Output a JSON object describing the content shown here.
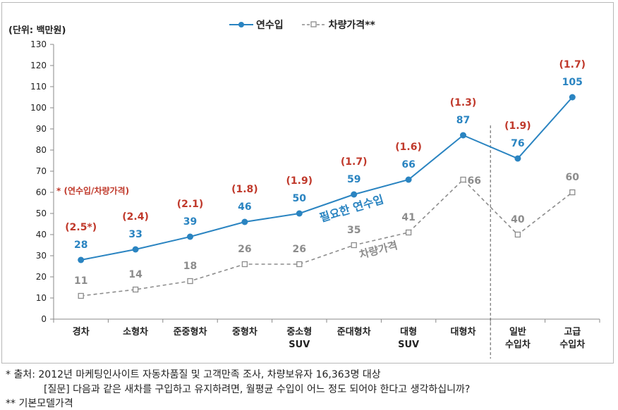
{
  "chart_data": {
    "type": "line",
    "unit_label": "(단위: 백만원)",
    "categories": [
      "경차",
      "소형차",
      "준중형차",
      "중형차",
      "중소형\nSUV",
      "준대형차",
      "대형\nSUV",
      "대형차",
      "일반\n수입차",
      "고급\n수입차"
    ],
    "ylim": [
      0,
      130
    ],
    "yticks": [
      0,
      10,
      20,
      30,
      40,
      50,
      60,
      70,
      80,
      90,
      100,
      110,
      120,
      130
    ],
    "grid": false,
    "legend_position": "top",
    "series": [
      {
        "name": "연수입",
        "values": [
          28,
          33,
          39,
          46,
          50,
          59,
          66,
          87,
          76,
          105
        ],
        "labels": [
          "28",
          "33",
          "39",
          "46",
          "50",
          "59",
          "66",
          "87",
          "76",
          "105"
        ],
        "color": "#2a84c1",
        "style": "solid",
        "marker": "circle"
      },
      {
        "name": "차량가격**",
        "values": [
          11,
          14,
          18,
          26,
          26,
          35,
          41,
          66,
          40,
          60
        ],
        "labels": [
          "11",
          "14",
          "18",
          "26",
          "26",
          "35",
          "41",
          "66",
          "40",
          "60"
        ],
        "color": "#8c8c8c",
        "style": "dashed",
        "marker": "square"
      }
    ],
    "ratios": [
      "(2.5*)",
      "(2.4)",
      "(2.1)",
      "(1.8)",
      "(1.9)",
      "(1.7)",
      "(1.6)",
      "(1.3)",
      "(1.9)",
      "(1.7)"
    ],
    "ratio_color": "#c0392b",
    "ratio_note": "* (연수입/차량가격)",
    "annotations": {
      "income_curve": "필요한 연수입",
      "price_curve": "차량가격"
    },
    "separator_after_index": 7
  },
  "notes": {
    "source": "* 출처: 2012년  마케팅인사이트 자동차품질 및 고객만족 조사, 차량보유자 16,363명 대상",
    "question": "[질문] 다음과 같은 새차를 구입하고 유지하려면, 월평균 수입이 어느 정도 되어야 한다고 생각하십니까?",
    "footnote": "** 기본모델가격"
  }
}
